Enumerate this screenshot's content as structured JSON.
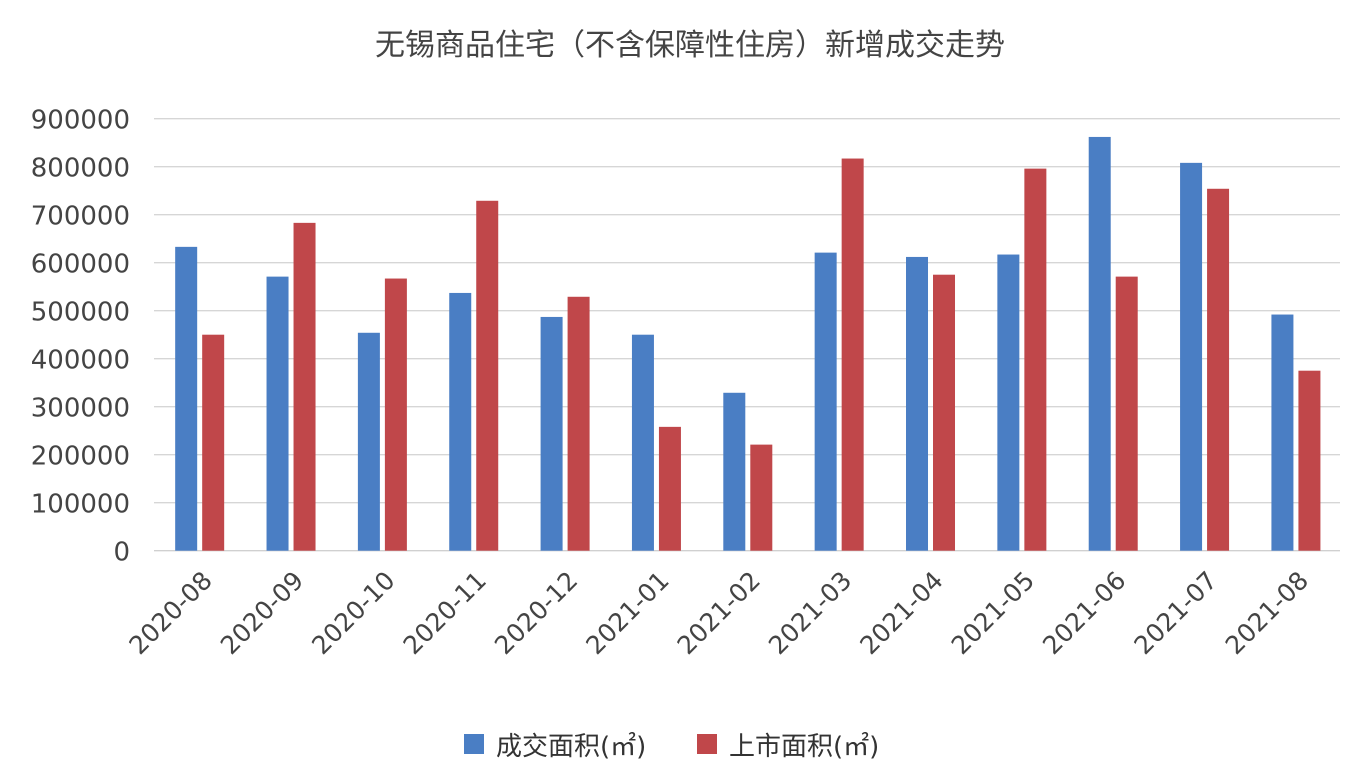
{
  "chart_data": {
    "type": "bar",
    "title": "无锡商品住宅（不含保障性住房）新增成交走势",
    "xlabel": "",
    "ylabel": "",
    "ylim": [
      0,
      900000
    ],
    "yticks": [
      "0",
      "100000",
      "200000",
      "300000",
      "400000",
      "500000",
      "600000",
      "700000",
      "800000",
      "900000"
    ],
    "grid": true,
    "legend_position": "bottom",
    "categories": [
      "2020-08",
      "2020-09",
      "2020-10",
      "2020-11",
      "2020-12",
      "2021-01",
      "2021-02",
      "2021-03",
      "2021-04",
      "2021-05",
      "2021-06",
      "2021-07",
      "2021-08"
    ],
    "series": [
      {
        "name": "成交面积(㎡)",
        "color": "#4a7ec4",
        "values": [
          633000,
          571000,
          454000,
          537000,
          487000,
          450000,
          329000,
          621000,
          612000,
          617000,
          862000,
          808000,
          492000
        ]
      },
      {
        "name": "上市面积(㎡)",
        "color": "#c0474a",
        "values": [
          450000,
          683000,
          567000,
          729000,
          529000,
          258000,
          221000,
          817000,
          575000,
          796000,
          571000,
          754000,
          375000
        ]
      }
    ]
  }
}
